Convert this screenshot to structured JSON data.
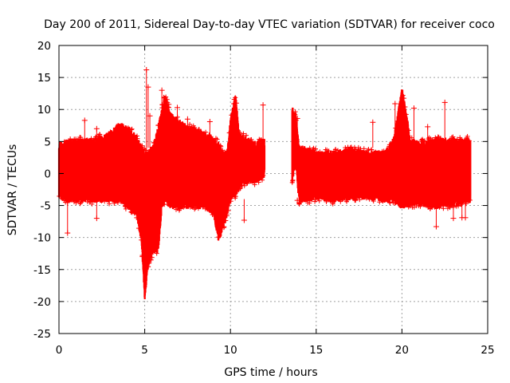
{
  "chart_data": {
    "type": "scatter",
    "title": "Day 200 of 2011, Sidereal Day-to-day VTEC variation (SDTVAR) for receiver coco",
    "xlabel": "GPS time / hours",
    "ylabel": "SDTVAR / TECUs",
    "xlim": [
      0,
      25
    ],
    "ylim": [
      -25,
      20
    ],
    "xticks": [
      0,
      5,
      10,
      15,
      20,
      25
    ],
    "yticks": [
      -25,
      -20,
      -15,
      -10,
      -5,
      0,
      5,
      10,
      15,
      20
    ],
    "xtick_labels": [
      "0",
      "5",
      "10",
      "15",
      "20",
      "25"
    ],
    "ytick_labels": [
      "-25",
      "-20",
      "-15",
      "-10",
      "-5",
      "0",
      "5",
      "10",
      "15",
      "20"
    ],
    "grid": true,
    "marker": "+",
    "color": "#ff0000",
    "data_gap": [
      12.0,
      13.6
    ],
    "series": [
      {
        "name": "SDTVAR",
        "envelope": {
          "x": [
            0,
            0.5,
            1,
            1.5,
            2,
            2.5,
            3,
            3.5,
            4,
            4.5,
            4.8,
            5.0,
            5.2,
            5.5,
            5.8,
            6.0,
            6.2,
            6.5,
            7,
            7.5,
            8,
            8.5,
            9,
            9.3,
            9.5,
            9.8,
            10,
            10.3,
            10.5,
            11,
            11.5,
            12.0
          ],
          "upper": [
            4.5,
            4.8,
            5,
            5,
            5,
            5.5,
            6,
            7.5,
            7,
            5.5,
            4,
            3,
            3,
            4,
            7,
            10,
            12,
            9,
            8,
            7,
            6.5,
            6,
            5,
            4.5,
            3,
            3,
            8,
            12,
            6,
            5,
            4.5,
            5
          ],
          "lower": [
            -3.5,
            -4,
            -4,
            -4,
            -4,
            -4,
            -4,
            -4,
            -5,
            -6,
            -10,
            -19.5,
            -14,
            -12,
            -12,
            -5,
            -4,
            -5,
            -5,
            -5,
            -5,
            -5,
            -6,
            -10,
            -9,
            -6,
            -4,
            -3,
            -2,
            -1,
            -1,
            0
          ]
        },
        "envelope2": {
          "x": [
            13.6,
            13.8,
            14,
            14.5,
            15,
            16,
            17,
            18,
            19,
            19.5,
            20,
            20.5,
            21,
            22,
            23,
            24
          ],
          "upper": [
            10,
            9,
            4,
            3.5,
            3,
            3,
            3.5,
            3,
            3,
            5,
            13,
            5,
            4.5,
            5,
            5,
            5
          ],
          "lower": [
            -1,
            2,
            -4,
            -4,
            -3.5,
            -4,
            -3.5,
            -3.5,
            -4,
            -4,
            -5,
            -4.5,
            -4.5,
            -5,
            -4.5,
            -4
          ]
        },
        "outliers": [
          [
            0.5,
            -9.3
          ],
          [
            1.5,
            8.3
          ],
          [
            2.2,
            7
          ],
          [
            2.2,
            -7
          ],
          [
            5.1,
            16.2
          ],
          [
            5.2,
            13.5
          ],
          [
            5.3,
            9
          ],
          [
            6.0,
            13
          ],
          [
            6.4,
            10.8
          ],
          [
            6.9,
            10.3
          ],
          [
            7.5,
            8.5
          ],
          [
            8.8,
            8.1
          ],
          [
            10.8,
            -7.3
          ],
          [
            11.9,
            10.7
          ],
          [
            13.9,
            8.6
          ],
          [
            13.9,
            -4.2
          ],
          [
            18.3,
            8.0
          ],
          [
            19.6,
            10.9
          ],
          [
            20.7,
            10.2
          ],
          [
            21.5,
            7.3
          ],
          [
            22.0,
            -8.3
          ],
          [
            22.5,
            11.1
          ],
          [
            23.0,
            -7
          ],
          [
            23.5,
            -6.9
          ],
          [
            23.7,
            -6.9
          ]
        ]
      }
    ]
  }
}
